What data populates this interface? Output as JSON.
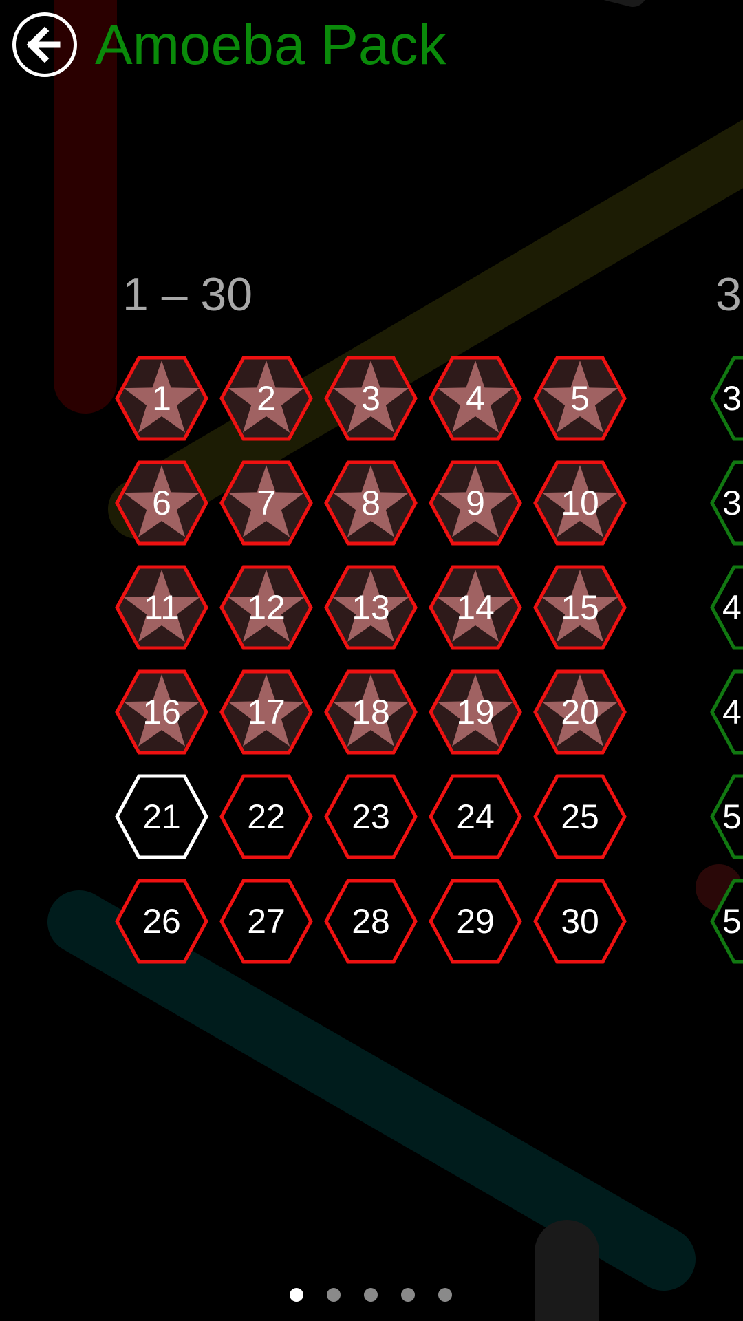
{
  "header": {
    "title": "Amoeba Pack",
    "back_icon": "back-arrow-circle-icon"
  },
  "colors": {
    "title": "#0a8a0a",
    "locked": "#ee1111",
    "current": "#ffffff",
    "unlocked_next_page": "#117711",
    "star": "#a06262",
    "star_bg": "#2e1a1a"
  },
  "pages": [
    {
      "range_label": "1 – 30",
      "levels": [
        {
          "n": "1",
          "state": "completed"
        },
        {
          "n": "2",
          "state": "completed"
        },
        {
          "n": "3",
          "state": "completed"
        },
        {
          "n": "4",
          "state": "completed"
        },
        {
          "n": "5",
          "state": "completed"
        },
        {
          "n": "6",
          "state": "completed"
        },
        {
          "n": "7",
          "state": "completed"
        },
        {
          "n": "8",
          "state": "completed"
        },
        {
          "n": "9",
          "state": "completed"
        },
        {
          "n": "10",
          "state": "completed"
        },
        {
          "n": "11",
          "state": "completed"
        },
        {
          "n": "12",
          "state": "completed"
        },
        {
          "n": "13",
          "state": "completed"
        },
        {
          "n": "14",
          "state": "completed"
        },
        {
          "n": "15",
          "state": "completed"
        },
        {
          "n": "16",
          "state": "completed"
        },
        {
          "n": "17",
          "state": "completed"
        },
        {
          "n": "18",
          "state": "completed"
        },
        {
          "n": "19",
          "state": "completed"
        },
        {
          "n": "20",
          "state": "completed"
        },
        {
          "n": "21",
          "state": "current"
        },
        {
          "n": "22",
          "state": "locked"
        },
        {
          "n": "23",
          "state": "locked"
        },
        {
          "n": "24",
          "state": "locked"
        },
        {
          "n": "25",
          "state": "locked"
        },
        {
          "n": "26",
          "state": "locked"
        },
        {
          "n": "27",
          "state": "locked"
        },
        {
          "n": "28",
          "state": "locked"
        },
        {
          "n": "29",
          "state": "locked"
        },
        {
          "n": "30",
          "state": "locked"
        }
      ]
    },
    {
      "range_label": "3",
      "levels": [
        {
          "n": "3",
          "state": "next"
        },
        {
          "n": "3",
          "state": "next"
        },
        {
          "n": "4",
          "state": "next"
        },
        {
          "n": "4",
          "state": "next"
        },
        {
          "n": "5",
          "state": "next"
        },
        {
          "n": "5",
          "state": "next"
        }
      ]
    }
  ],
  "pager": {
    "count": 5,
    "active": 0
  }
}
